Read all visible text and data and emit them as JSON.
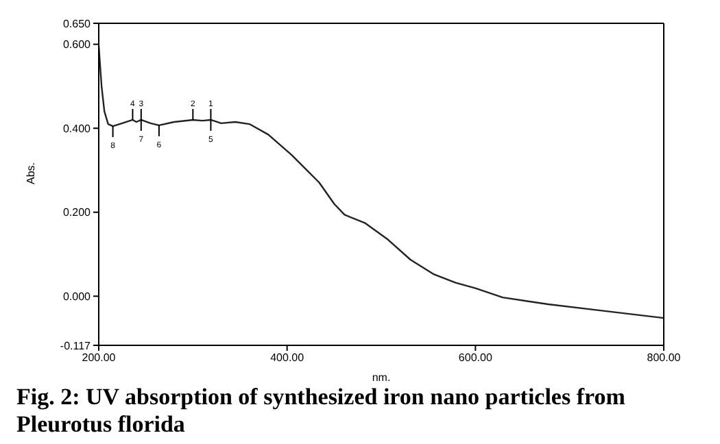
{
  "chart_data": {
    "type": "line",
    "title": "Fig. 2: UV absorption of synthesized iron nano particles from Pleurotus florida",
    "xlabel": "nm.",
    "ylabel": "Abs.",
    "x": [
      200,
      203,
      206,
      210,
      215,
      225,
      236,
      240,
      245,
      255,
      264,
      280,
      300,
      310,
      319,
      330,
      345,
      360,
      380,
      405,
      434,
      450,
      461,
      483,
      507,
      531,
      556,
      579,
      600,
      629,
      677,
      725,
      800
    ],
    "series": [
      {
        "color": "#222222",
        "values": [
          0.597,
          0.5,
          0.44,
          0.41,
          0.405,
          0.412,
          0.42,
          0.415,
          0.42,
          0.412,
          0.407,
          0.415,
          0.42,
          0.418,
          0.42,
          0.412,
          0.415,
          0.41,
          0.385,
          0.336,
          0.271,
          0.22,
          0.194,
          0.174,
          0.135,
          0.087,
          0.052,
          0.032,
          0.019,
          -0.003,
          -0.019,
          -0.032,
          -0.052
        ]
      }
    ],
    "xlim": [
      200,
      800
    ],
    "ylim": [
      -0.117,
      0.65
    ],
    "xticks": [
      {
        "value": 200,
        "label": "200.00"
      },
      {
        "value": 400,
        "label": "400.00"
      },
      {
        "value": 600,
        "label": "600.00"
      },
      {
        "value": 800,
        "label": "800.00"
      }
    ],
    "yticks": [
      {
        "value": -0.117,
        "label": "-0.117"
      },
      {
        "value": 0,
        "label": "0.000"
      },
      {
        "value": 0.2,
        "label": "0.200"
      },
      {
        "value": 0.4,
        "label": "0.400"
      },
      {
        "value": 0.6,
        "label": "0.600"
      },
      {
        "value": 0.65,
        "label": "0.650"
      }
    ],
    "annotations": [
      {
        "text": "1",
        "x": 319,
        "y": 0.42
      },
      {
        "text": "2",
        "x": 300,
        "y": 0.42
      },
      {
        "text": "3",
        "x": 245,
        "y": 0.42
      },
      {
        "text": "4",
        "x": 236,
        "y": 0.42
      },
      {
        "text": "5",
        "x": 319,
        "y": 0.42
      },
      {
        "text": "6",
        "x": 264,
        "y": 0.407
      },
      {
        "text": "7",
        "x": 245,
        "y": 0.42
      },
      {
        "text": "8",
        "x": 215,
        "y": 0.405
      }
    ],
    "grid": false,
    "legend": false,
    "marker": "none",
    "line_style": "solid"
  }
}
